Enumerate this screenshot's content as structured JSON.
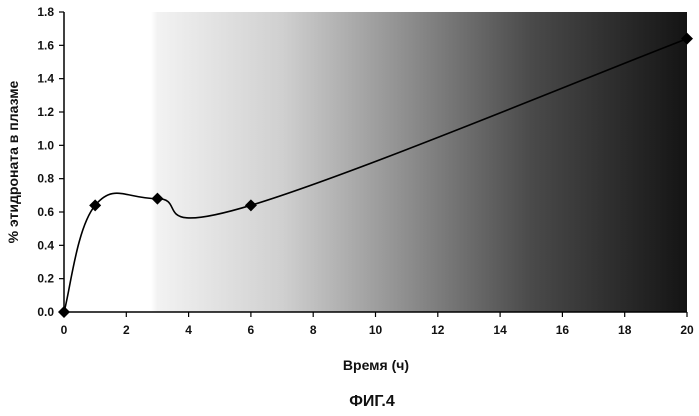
{
  "chart_data": {
    "type": "line",
    "title": "",
    "xlabel": "Время (ч)",
    "ylabel": "% этидроната в плазме",
    "caption": "ФИГ.4",
    "xlim": [
      0,
      20
    ],
    "ylim": [
      0,
      1.8
    ],
    "x_ticks": [
      "0",
      "2",
      "4",
      "6",
      "8",
      "10",
      "12",
      "14",
      "16",
      "18",
      "20"
    ],
    "y_ticks": [
      "0.0",
      "0.2",
      "0.4",
      "0.6",
      "0.8",
      "1.0",
      "1.2",
      "1.4",
      "1.6",
      "1.8"
    ],
    "grid": false,
    "legend": "none",
    "series": [
      {
        "x": [
          0,
          1,
          3,
          6,
          20
        ],
        "y": [
          0.0,
          0.64,
          0.68,
          0.64,
          1.64
        ],
        "marker": "diamond",
        "color": "#000000"
      }
    ],
    "background": "gradient light-left to dark-right"
  }
}
